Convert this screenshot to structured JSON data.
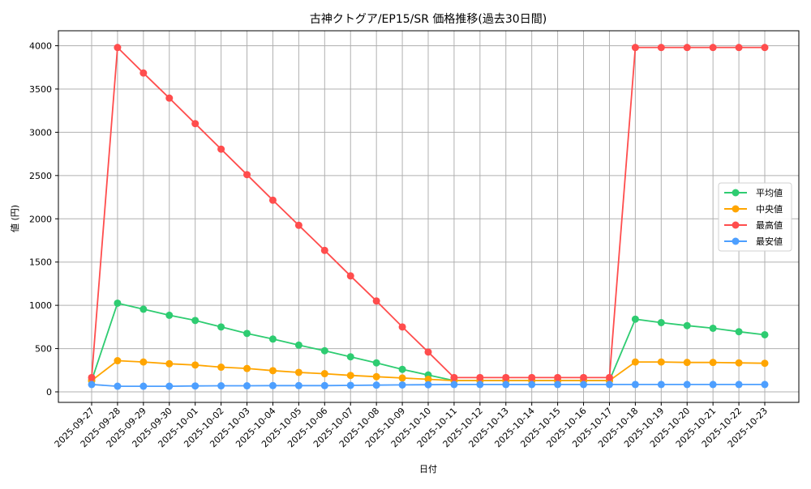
{
  "chart_data": {
    "type": "line",
    "title": "古神クトグア/EP15/SR 価格推移(過去30日間)",
    "xlabel": "日付",
    "ylabel": "値 (円)",
    "ylim": [
      -130,
      4170
    ],
    "yticks": [
      0,
      500,
      1000,
      1500,
      2000,
      2500,
      3000,
      3500,
      4000
    ],
    "grid": true,
    "legend_position": "center right",
    "categories": [
      "2025-09-27",
      "2025-09-28",
      "2025-09-29",
      "2025-09-30",
      "2025-10-01",
      "2025-10-02",
      "2025-10-03",
      "2025-10-04",
      "2025-10-05",
      "2025-10-06",
      "2025-10-07",
      "2025-10-08",
      "2025-10-09",
      "2025-10-10",
      "2025-10-11",
      "2025-10-12",
      "2025-10-13",
      "2025-10-14",
      "2025-10-15",
      "2025-10-16",
      "2025-10-17",
      "2025-10-18",
      "2025-10-19",
      "2025-10-20",
      "2025-10-21",
      "2025-10-22",
      "2025-10-23"
    ],
    "series": [
      {
        "name": "平均値",
        "color": "#2ecc71",
        "values": [
          130,
          1025,
          955,
          885,
          825,
          750,
          675,
          610,
          540,
          475,
          405,
          335,
          260,
          195,
          130,
          130,
          130,
          130,
          130,
          130,
          130,
          840,
          800,
          765,
          735,
          695,
          660
        ]
      },
      {
        "name": "中央値",
        "color": "#ffa500",
        "values": [
          130,
          360,
          345,
          325,
          310,
          285,
          270,
          245,
          225,
          210,
          190,
          175,
          160,
          145,
          130,
          130,
          130,
          130,
          130,
          130,
          130,
          345,
          345,
          340,
          340,
          335,
          330
        ]
      },
      {
        "name": "最高値",
        "color": "#ff4d4d",
        "values": [
          165,
          3980,
          3685,
          3395,
          3100,
          2805,
          2510,
          2215,
          1925,
          1635,
          1340,
          1050,
          750,
          460,
          165,
          165,
          165,
          165,
          165,
          165,
          165,
          3980,
          3980,
          3980,
          3980,
          3980,
          3980
        ]
      },
      {
        "name": "最安値",
        "color": "#4d9fff",
        "values": [
          85,
          65,
          65,
          65,
          68,
          70,
          70,
          72,
          72,
          72,
          75,
          78,
          80,
          82,
          85,
          85,
          85,
          85,
          85,
          85,
          85,
          85,
          85,
          85,
          85,
          85,
          85
        ]
      }
    ]
  }
}
